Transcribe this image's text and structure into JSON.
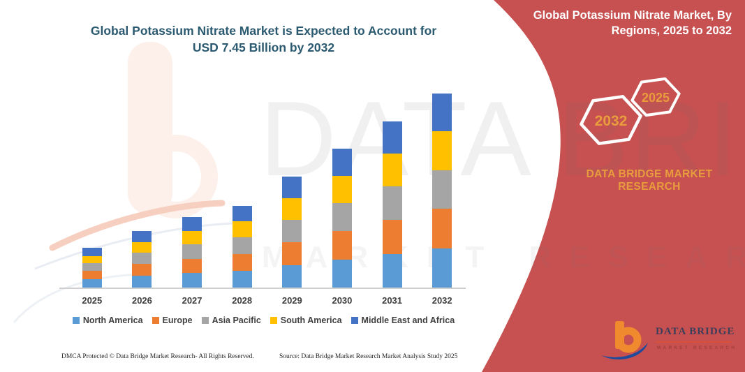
{
  "main_title": {
    "line1": "Global Potassium Nitrate Market is Expected to Account for",
    "line2": "USD 7.45 Billion by 2032"
  },
  "banner": {
    "title_line1": "Global Potassium Nitrate Market, By",
    "title_line2": "Regions, 2025 to 2032",
    "hexagon_back": "2032",
    "hexagon_front": "2025",
    "brand_line1": "DATA BRIDGE MARKET",
    "brand_line2": "RESEARCH"
  },
  "logo": {
    "name": "DATA BRIDGE",
    "subtitle": "MARKET RESEARCH"
  },
  "watermark": {
    "text_main": "DATA BRIDGE",
    "text_sub": "MARKET RESEARCH"
  },
  "footer": {
    "dmca": "DMCA Protected © Data Bridge Market Research-  All Rights Reserved.",
    "source": "Source: Data Bridge Market Research  Market Analysis Study 2025"
  },
  "theme": {
    "banner_red": "#C75150",
    "title_color": "#2B5A70",
    "accent_orange": "#E89C3D",
    "logo_orange": "#F08A2E",
    "logo_blue": "#1E4B9B",
    "axis_line": "#CFCFCF"
  },
  "chart_data": {
    "type": "bar",
    "subtype": "stacked",
    "title": "Global Potassium Nitrate Market is Expected to Account for USD 7.45 Billion by 2032",
    "unit": "USD Billion",
    "categories": [
      "2025",
      "2026",
      "2027",
      "2028",
      "2029",
      "2030",
      "2031",
      "2032"
    ],
    "series": [
      {
        "name": "North America",
        "color": "#5B9BD5",
        "values": [
          0.34,
          0.48,
          0.58,
          0.68,
          0.89,
          1.1,
          1.31,
          1.52
        ]
      },
      {
        "name": "Europe",
        "color": "#ED7D31",
        "values": [
          0.33,
          0.45,
          0.55,
          0.64,
          0.88,
          1.08,
          1.3,
          1.53
        ]
      },
      {
        "name": "Asia Pacific",
        "color": "#A5A5A5",
        "values": [
          0.28,
          0.43,
          0.55,
          0.62,
          0.84,
          1.07,
          1.28,
          1.46
        ]
      },
      {
        "name": "South America",
        "color": "#FFC000",
        "values": [
          0.29,
          0.41,
          0.52,
          0.62,
          0.84,
          1.06,
          1.26,
          1.5
        ]
      },
      {
        "name": "Middle East and Africa",
        "color": "#4472C4",
        "values": [
          0.31,
          0.42,
          0.52,
          0.59,
          0.82,
          1.03,
          1.23,
          1.44
        ]
      }
    ],
    "totals": [
      1.55,
      2.19,
      2.72,
      3.15,
      4.27,
      5.34,
      6.38,
      7.45
    ],
    "ylim": [
      0,
      7.45
    ],
    "grid": false,
    "y_axis_visible": false,
    "legend_position": "bottom",
    "final_year_total_annotation": "USD 7.45 Billion by 2032"
  }
}
